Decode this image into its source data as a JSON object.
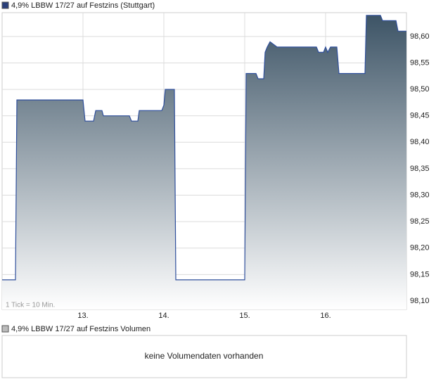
{
  "chart_data": {
    "type": "area",
    "title": "4,9% LBBW 17/27 auf Festzins (Stuttgart)",
    "note": "1 Tick = 10 Min.",
    "color": "#2f4f9c",
    "fill_top": "#3d5466",
    "x": [
      12.0,
      12.165,
      12.183,
      13.0,
      13.026,
      13.13,
      13.157,
      13.235,
      13.252,
      13.574,
      13.6,
      13.678,
      13.696,
      13.974,
      14.0,
      14.017,
      14.13,
      14.148,
      15.0,
      15.017,
      15.139,
      15.165,
      15.235,
      15.252,
      15.278,
      15.313,
      15.4,
      15.887,
      15.913,
      15.974,
      16.0,
      16.026,
      16.061,
      16.139,
      16.165,
      16.487,
      16.504,
      16.678,
      16.704,
      16.87,
      16.896,
      17.0
    ],
    "values": [
      98.14,
      98.14,
      98.48,
      98.48,
      98.44,
      98.44,
      98.46,
      98.46,
      98.45,
      98.45,
      98.44,
      98.44,
      98.46,
      98.46,
      98.47,
      98.5,
      98.5,
      98.14,
      98.14,
      98.53,
      98.53,
      98.52,
      98.52,
      98.57,
      98.58,
      98.59,
      98.58,
      98.58,
      98.57,
      98.57,
      98.58,
      98.57,
      98.58,
      98.58,
      98.53,
      98.53,
      98.64,
      98.64,
      98.63,
      98.63,
      98.61,
      98.61
    ],
    "xlim": [
      12,
      17
    ],
    "xticks": [
      {
        "value": 13,
        "label": "13."
      },
      {
        "value": 14,
        "label": "14."
      },
      {
        "value": 15,
        "label": "15."
      },
      {
        "value": 16,
        "label": "16."
      }
    ],
    "ylim": [
      98.084,
      98.645
    ],
    "yticks": [
      {
        "value": 98.1,
        "label": "98,10"
      },
      {
        "value": 98.15,
        "label": "98,15"
      },
      {
        "value": 98.2,
        "label": "98,20"
      },
      {
        "value": 98.25,
        "label": "98,25"
      },
      {
        "value": 98.3,
        "label": "98,30"
      },
      {
        "value": 98.35,
        "label": "98,35"
      },
      {
        "value": 98.4,
        "label": "98,40"
      },
      {
        "value": 98.45,
        "label": "98,45"
      },
      {
        "value": 98.5,
        "label": "98,50"
      },
      {
        "value": 98.55,
        "label": "98,55"
      },
      {
        "value": 98.6,
        "label": "98,60"
      }
    ],
    "grid": true
  },
  "volume": {
    "title": "4,9% LBBW 17/27 auf Festzins Volumen",
    "message": "keine Volumendaten vorhanden"
  }
}
